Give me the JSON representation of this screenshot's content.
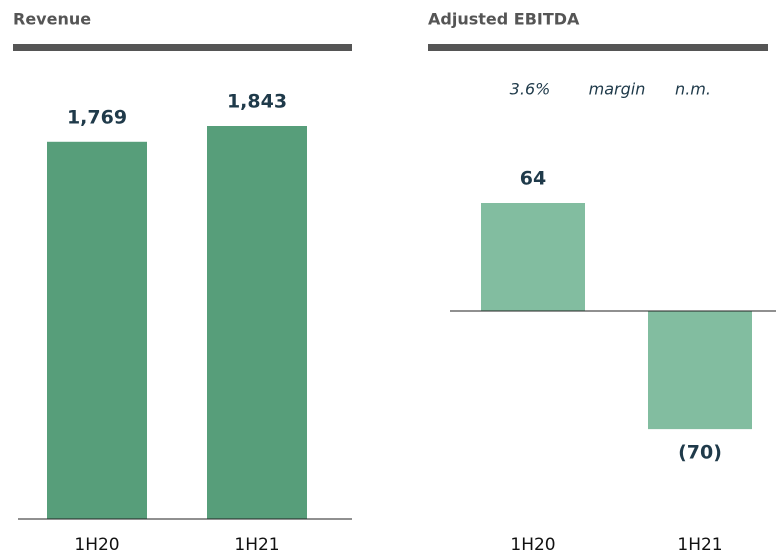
{
  "chart_data": [
    {
      "type": "bar",
      "title": "Revenue",
      "categories": [
        "1H20",
        "1H21"
      ],
      "values": [
        1769,
        1843
      ],
      "value_labels": [
        "1,769",
        "1,843"
      ],
      "color": "#579e7a"
    },
    {
      "type": "bar",
      "title": "Adjusted EBITDA",
      "annotations": [
        "3.6%",
        "margin",
        "n.m."
      ],
      "categories": [
        "1H20",
        "1H21"
      ],
      "values": [
        64,
        -70
      ],
      "value_labels": [
        "64",
        "(70)"
      ],
      "color": "#82bda0"
    }
  ]
}
